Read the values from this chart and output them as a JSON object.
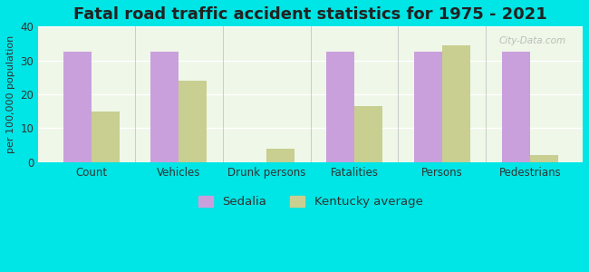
{
  "title": "Fatal road traffic accident statistics for 1975 - 2021",
  "ylabel": "per 100,000 population",
  "categories": [
    "Count",
    "Vehicles",
    "Drunk persons",
    "Fatalities",
    "Persons",
    "Pedestrians"
  ],
  "sedalia_values": [
    32.5,
    32.5,
    0,
    32.5,
    32.5,
    32.5
  ],
  "kentucky_values": [
    15,
    24,
    4,
    16.5,
    34.5,
    2
  ],
  "sedalia_color": "#c9a0dc",
  "kentucky_color": "#c8cf90",
  "background_outer": "#00e5e5",
  "background_inner": "#eef7e8",
  "ylim": [
    0,
    40
  ],
  "yticks": [
    0,
    10,
    20,
    30,
    40
  ],
  "bar_width": 0.32,
  "title_fontsize": 13,
  "tick_fontsize": 8.5,
  "ylabel_fontsize": 8,
  "legend_fontsize": 9.5,
  "watermark_text": "City-Data.com"
}
